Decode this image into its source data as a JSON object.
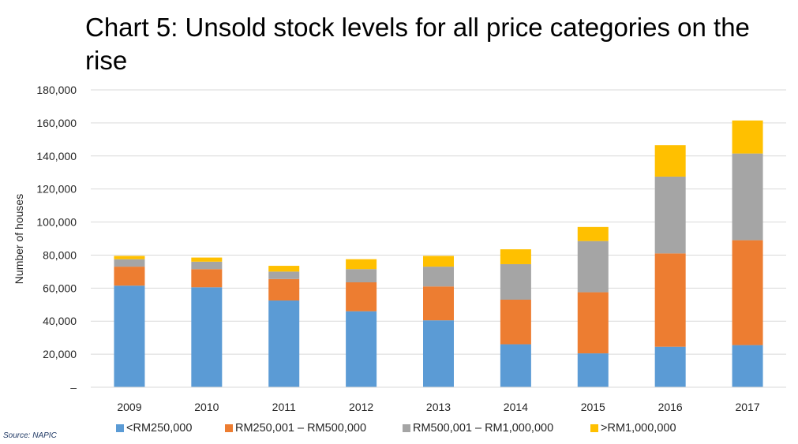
{
  "chart_data": {
    "type": "bar",
    "stacked": true,
    "title": "Chart 5: Unsold stock levels for all price categories on the rise",
    "xlabel": "",
    "ylabel": "Number of houses",
    "ylim": [
      0,
      180000
    ],
    "yticks": [
      0,
      20000,
      40000,
      60000,
      80000,
      100000,
      120000,
      140000,
      160000,
      180000
    ],
    "ytick_labels": [
      "–",
      "20,000",
      "40,000",
      "60,000",
      "80,000",
      "100,000",
      "120,000",
      "140,000",
      "160,000",
      "180,000"
    ],
    "grid": true,
    "legend_position": "bottom",
    "categories": [
      "2009",
      "2010",
      "2011",
      "2012",
      "2013",
      "2014",
      "2015",
      "2016",
      "2017"
    ],
    "series": [
      {
        "name": "<RM250,000",
        "color": "#5b9bd5",
        "values": [
          61500,
          60500,
          52500,
          46000,
          40500,
          26000,
          20500,
          24500,
          25500
        ]
      },
      {
        "name": "RM250,001 – RM500,000",
        "color": "#ed7d31",
        "values": [
          11500,
          11000,
          13000,
          17500,
          20500,
          27000,
          37000,
          56500,
          63500
        ]
      },
      {
        "name": "RM500,001 – RM1,000,000",
        "color": "#a5a5a5",
        "values": [
          4500,
          4500,
          4500,
          8000,
          12000,
          21500,
          31000,
          46500,
          52500
        ]
      },
      {
        "name": ">RM1,000,000",
        "color": "#ffc000",
        "values": [
          2000,
          2500,
          3500,
          6000,
          6500,
          9000,
          8500,
          19000,
          20000
        ]
      }
    ]
  },
  "source": "Source: NAPIC"
}
